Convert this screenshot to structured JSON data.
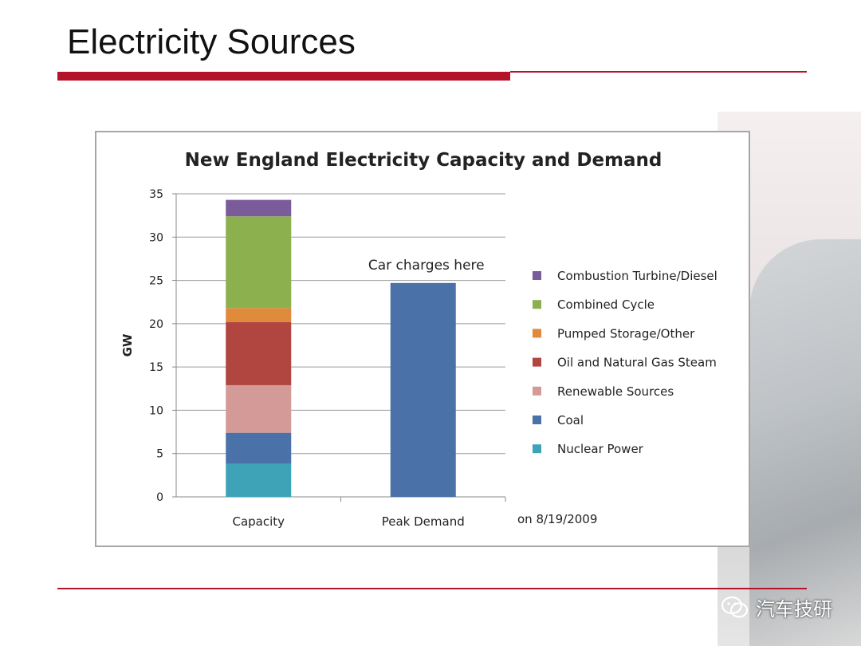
{
  "slide": {
    "title": "Electricity Sources",
    "watermark_text": "汽车技研",
    "watermark_icon": "wechat-icon"
  },
  "colors": {
    "accent": "#b3142a",
    "combustion": "#7a5c9a",
    "combined_cycle": "#8db04f",
    "pumped_storage": "#e08a3c",
    "oil_gas": "#b1453f",
    "renewable": "#d49a98",
    "coal": "#4a72a8",
    "nuclear": "#3fa3b8"
  },
  "chart_data": {
    "type": "bar",
    "stacked": true,
    "title": "New England  Electricity Capacity and Demand",
    "ylabel": "GW",
    "xlabel": "",
    "ylim": [
      0,
      35
    ],
    "yticks": [
      0,
      5,
      10,
      15,
      20,
      25,
      30,
      35
    ],
    "grid": true,
    "legend_position": "right",
    "categories": [
      "Capacity",
      "Peak Demand"
    ],
    "series": [
      {
        "name": "Nuclear Power",
        "color": "#3fa3b8",
        "values": [
          3.8,
          0
        ]
      },
      {
        "name": "Coal",
        "color": "#4a72a8",
        "values": [
          3.6,
          24.7
        ]
      },
      {
        "name": "Renewable Sources",
        "color": "#d49a98",
        "values": [
          5.5,
          0
        ]
      },
      {
        "name": "Oil and Natural  Gas Steam",
        "color": "#b1453f",
        "values": [
          7.3,
          0
        ]
      },
      {
        "name": "Pumped Storage/Other",
        "color": "#e08a3c",
        "values": [
          1.6,
          0
        ]
      },
      {
        "name": "Combined  Cycle",
        "color": "#8db04f",
        "values": [
          10.6,
          0
        ]
      },
      {
        "name": "Combustion  Turbine/Diesel",
        "color": "#7a5c9a",
        "values": [
          1.9,
          0
        ]
      }
    ],
    "legend_order": [
      "Combustion  Turbine/Diesel",
      "Combined  Cycle",
      "Pumped Storage/Other",
      "Oil and Natural  Gas Steam",
      "Renewable Sources",
      "Coal",
      "Nuclear Power"
    ],
    "annotations": {
      "peak_note": "Car charges here",
      "date_note": "on 8/19/2009"
    }
  }
}
